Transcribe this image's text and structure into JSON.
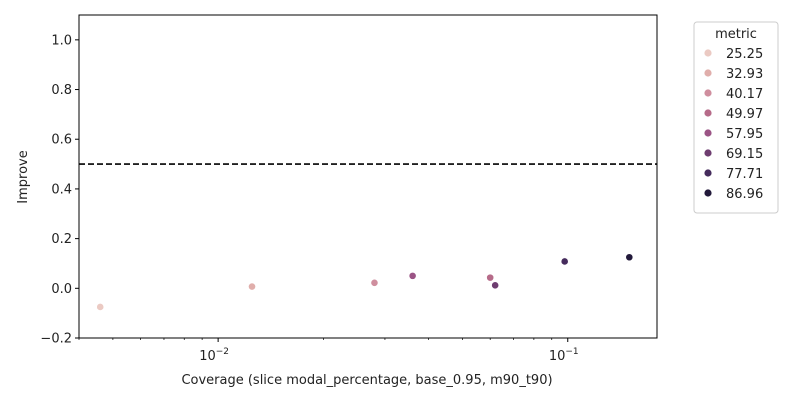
{
  "chart_data": {
    "type": "scatter",
    "xlabel": "Coverage (slice modal_percentage, base_0.95, m90_t90)",
    "ylabel": "Improve",
    "x_scale": "log",
    "xlim": [
      0.004,
      0.18
    ],
    "ylim": [
      -0.2,
      1.1
    ],
    "x_ticks": [
      {
        "value": 0.01,
        "base": "10",
        "exp": "−2"
      },
      {
        "value": 0.1,
        "base": "10",
        "exp": "−1"
      }
    ],
    "y_ticks": [
      {
        "value": -0.2,
        "label": "−0.2"
      },
      {
        "value": 0.0,
        "label": "0.0"
      },
      {
        "value": 0.2,
        "label": "0.2"
      },
      {
        "value": 0.4,
        "label": "0.4"
      },
      {
        "value": 0.6,
        "label": "0.6"
      },
      {
        "value": 0.8,
        "label": "0.8"
      },
      {
        "value": 1.0,
        "label": "1.0"
      }
    ],
    "reference_line": {
      "y": 0.5,
      "style": "dashed",
      "color": "#000000"
    },
    "grid": false,
    "legend": {
      "title": "metric",
      "placement": "outside-right",
      "entries": [
        {
          "label": "25.25",
          "color": "#ebcac3"
        },
        {
          "label": "32.93",
          "color": "#e0aeab"
        },
        {
          "label": "40.17",
          "color": "#cf8e9e"
        },
        {
          "label": "49.97",
          "color": "#b66b89"
        },
        {
          "label": "57.95",
          "color": "#9b5485"
        },
        {
          "label": "69.15",
          "color": "#6e3d70"
        },
        {
          "label": "77.71",
          "color": "#452b5c"
        },
        {
          "label": "86.96",
          "color": "#22193a"
        }
      ]
    },
    "points": [
      {
        "x": 0.0046,
        "y": -0.075,
        "metric": "25.25",
        "color": "#ebcac3"
      },
      {
        "x": 0.0125,
        "y": 0.007,
        "metric": "32.93",
        "color": "#e0aeab"
      },
      {
        "x": 0.028,
        "y": 0.022,
        "metric": "40.17",
        "color": "#cf8e9e"
      },
      {
        "x": 0.036,
        "y": 0.05,
        "metric": "57.95",
        "color": "#9b5485"
      },
      {
        "x": 0.06,
        "y": 0.043,
        "metric": "49.97",
        "color": "#b66b89"
      },
      {
        "x": 0.062,
        "y": 0.012,
        "metric": "69.15",
        "color": "#6e3d70"
      },
      {
        "x": 0.098,
        "y": 0.108,
        "metric": "77.71",
        "color": "#452b5c"
      },
      {
        "x": 0.15,
        "y": 0.125,
        "metric": "86.96",
        "color": "#22193a"
      }
    ]
  }
}
